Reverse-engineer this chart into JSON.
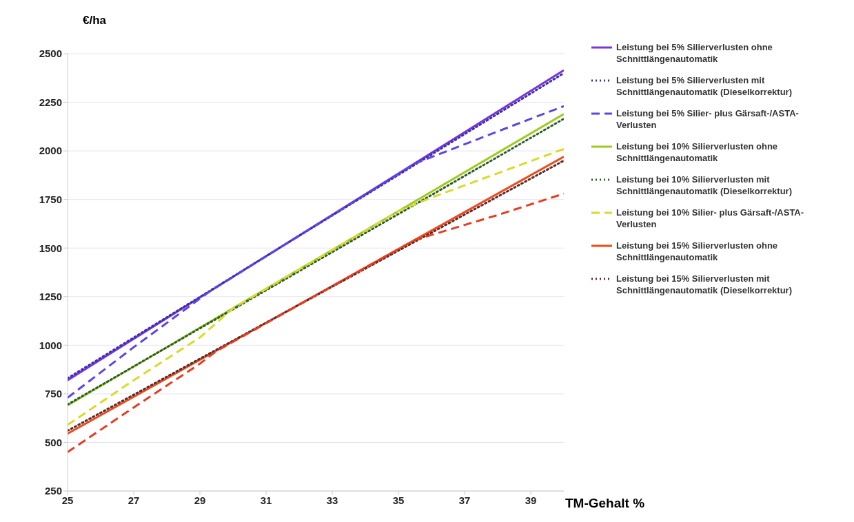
{
  "chart_data": {
    "type": "line",
    "xlabel": "TM-Gehalt %",
    "ylabel": "€/ha",
    "xlim": [
      25,
      40
    ],
    "xticks": [
      25,
      27,
      29,
      31,
      33,
      35,
      37,
      39
    ],
    "ylim": [
      250,
      2500
    ],
    "yticks": [
      250,
      500,
      750,
      1000,
      1250,
      1500,
      1750,
      2000,
      2250,
      2500
    ],
    "grid": "y",
    "legend": "right",
    "series": [
      {
        "name": "Leistung bei 5% Silierverlusten ohne Schnittlängenautomatik",
        "color": "#7a35d6",
        "line_style": "solid",
        "x": [
          25,
          40
        ],
        "values": [
          820,
          2415
        ]
      },
      {
        "name": "Leistung bei 5% Silierverlusten mit Schnittlängenautomatik (Dieselkorrektur)",
        "color": "#3b2fb0",
        "line_style": "dotted",
        "x": [
          25,
          40
        ],
        "values": [
          830,
          2400
        ]
      },
      {
        "name": "Leistung bei 5% Silier- plus Gärsaft-/ASTA-Verlusten",
        "color": "#5a45e6",
        "line_style": "dashed",
        "x": [
          25,
          27,
          29,
          29.3,
          35.5,
          38,
          40
        ],
        "values": [
          730,
          990,
          1240,
          1277,
          1935,
          2100,
          2230
        ]
      },
      {
        "name": "Leistung bei 10% Silierverlusten ohne Schnittlängenautomatik",
        "color": "#9ccc1a",
        "line_style": "solid",
        "x": [
          25,
          40
        ],
        "values": [
          690,
          2190
        ]
      },
      {
        "name": "Leistung bei 10% Silierverlusten mit Schnittlängenautomatik (Dieselkorrektur)",
        "color": "#2e5a2e",
        "line_style": "dotted",
        "x": [
          25,
          40
        ],
        "values": [
          695,
          2165
        ]
      },
      {
        "name": "Leistung bei 10% Silier- plus Gärsaft-/ASTA-Verlusten",
        "color": "#dada28",
        "line_style": "dashed",
        "x": [
          25,
          27,
          29,
          30,
          35,
          36,
          38,
          40
        ],
        "values": [
          590,
          820,
          1040,
          1190,
          1690,
          1760,
          1885,
          2010
        ]
      },
      {
        "name": "Leistung bei 15% Silierverlusten ohne Schnittlängenautomatik",
        "color": "#f04a18",
        "line_style": "solid",
        "x": [
          25,
          40
        ],
        "values": [
          545,
          1970
        ]
      },
      {
        "name": "Leistung bei 15% Silierverlusten mit Schnittlängenautomatik (Dieselkorrektur)",
        "color": "#5a2a2a",
        "line_style": "dotted",
        "x": [
          25,
          40
        ],
        "values": [
          560,
          1950
        ]
      },
      {
        "color": "#e83a20",
        "line_style": "dashed",
        "x": [
          25,
          27,
          29,
          29.5,
          35.5,
          38,
          40
        ],
        "values": [
          450,
          680,
          905,
          970,
          1542,
          1670,
          1780
        ]
      }
    ]
  }
}
